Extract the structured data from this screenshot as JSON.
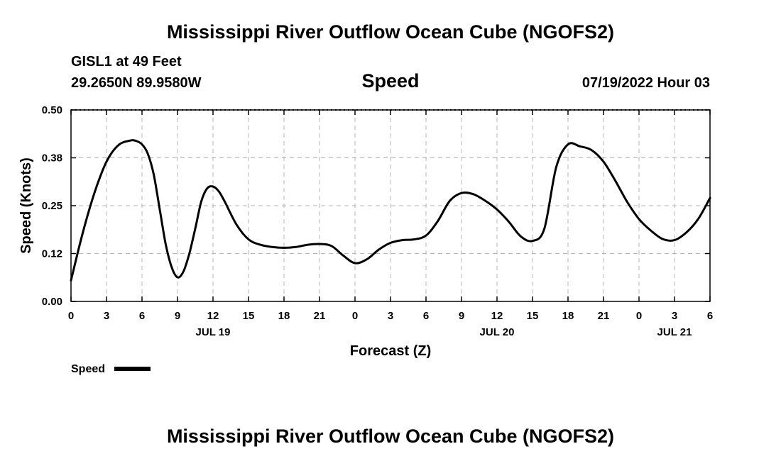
{
  "header": {
    "title": "Mississippi River Outflow Ocean Cube (NGOFS2)",
    "station": "GISL1 at 49 Feet",
    "coords": "29.2650N  89.9580W",
    "panel_title": "Speed",
    "datetime": "07/19/2022 Hour 03"
  },
  "footer": {
    "title": "Mississippi River Outflow Ocean Cube (NGOFS2)"
  },
  "chart_data": {
    "type": "line",
    "title": "Speed",
    "xlabel": "Forecast (Z)",
    "ylabel": "Speed (Knots)",
    "xlim": [
      0,
      54
    ],
    "ylim": [
      0,
      0.5
    ],
    "grid": true,
    "x_ticks": [
      0,
      3,
      6,
      9,
      12,
      15,
      18,
      21,
      24,
      27,
      30,
      33,
      36,
      39,
      42,
      45,
      48,
      51,
      54
    ],
    "x_tick_labels": [
      "0",
      "3",
      "6",
      "9",
      "12",
      "15",
      "18",
      "21",
      "0",
      "3",
      "6",
      "9",
      "12",
      "15",
      "18",
      "21",
      "0",
      "3",
      "6"
    ],
    "y_ticks": [
      0,
      0.125,
      0.25,
      0.375,
      0.5
    ],
    "y_tick_labels": [
      "0.00",
      "0.12",
      "0.25",
      "0.38",
      "0.50"
    ],
    "date_labels": [
      {
        "x": 12,
        "label": "JUL 19"
      },
      {
        "x": 36,
        "label": "JUL 20"
      },
      {
        "x": 51,
        "label": "JUL 21"
      }
    ],
    "legend": {
      "label": "Speed",
      "position": "bottom-left"
    },
    "series": [
      {
        "name": "Speed",
        "color": "#000000",
        "x": [
          0,
          1,
          2,
          3,
          4,
          5,
          5.5,
          6,
          6.5,
          7,
          7.5,
          8,
          8.5,
          9,
          9.5,
          10,
          10.5,
          11,
          11.5,
          12,
          12.5,
          13,
          14,
          15,
          16,
          17,
          18,
          19,
          20,
          21,
          22,
          23,
          24,
          25,
          26,
          27,
          28,
          29,
          30,
          31,
          32,
          33,
          34,
          35,
          36,
          37,
          38,
          39,
          40,
          41,
          42,
          43,
          44,
          45,
          46,
          47,
          48,
          49,
          50,
          51,
          52,
          53,
          54
        ],
        "values": [
          0.055,
          0.18,
          0.285,
          0.365,
          0.408,
          0.42,
          0.419,
          0.41,
          0.385,
          0.33,
          0.24,
          0.15,
          0.09,
          0.063,
          0.078,
          0.125,
          0.19,
          0.26,
          0.295,
          0.3,
          0.287,
          0.26,
          0.2,
          0.162,
          0.148,
          0.142,
          0.14,
          0.142,
          0.148,
          0.15,
          0.145,
          0.12,
          0.1,
          0.11,
          0.135,
          0.153,
          0.16,
          0.162,
          0.172,
          0.21,
          0.262,
          0.283,
          0.28,
          0.263,
          0.24,
          0.208,
          0.17,
          0.158,
          0.19,
          0.35,
          0.41,
          0.405,
          0.395,
          0.365,
          0.315,
          0.26,
          0.215,
          0.185,
          0.163,
          0.16,
          0.18,
          0.215,
          0.27
        ]
      }
    ]
  }
}
